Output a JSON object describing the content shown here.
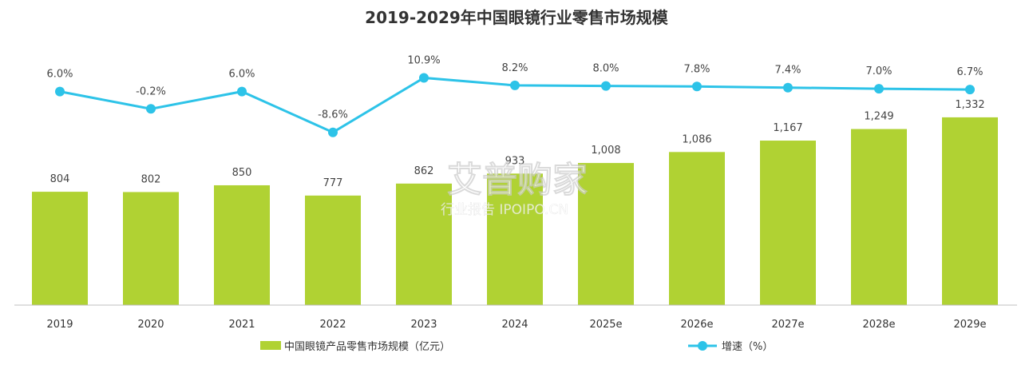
{
  "chart_data": {
    "type": "bar",
    "title": "2019-2029年中国眼镜行业零售市场规模",
    "categories": [
      "2019",
      "2020",
      "2021",
      "2022",
      "2023",
      "2024",
      "2025e",
      "2026e",
      "2027e",
      "2028e",
      "2029e"
    ],
    "series": [
      {
        "name": "中国眼镜产品零售市场规模（亿元）",
        "kind": "bar",
        "values": [
          804,
          802,
          850,
          777,
          862,
          933,
          1008,
          1086,
          1167,
          1249,
          1332
        ],
        "labels": [
          "804",
          "802",
          "850",
          "777",
          "862",
          "933",
          "1,008",
          "1,086",
          "1,167",
          "1,249",
          "1,332"
        ],
        "color": "#b0d233"
      },
      {
        "name": "增速（%）",
        "kind": "line",
        "values": [
          6.0,
          -0.2,
          6.0,
          -8.6,
          10.9,
          8.2,
          8.0,
          7.8,
          7.4,
          7.0,
          6.7
        ],
        "labels": [
          "6.0%",
          "-0.2%",
          "6.0%",
          "-8.6%",
          "10.9%",
          "8.2%",
          "8.0%",
          "7.8%",
          "7.4%",
          "7.0%",
          "6.7%"
        ],
        "color": "#2dc3e8"
      }
    ],
    "grid": false,
    "legend": "bottom"
  },
  "watermark": {
    "brand": "艾普购家",
    "line2": "行业报告 IPOIPO.CN"
  }
}
